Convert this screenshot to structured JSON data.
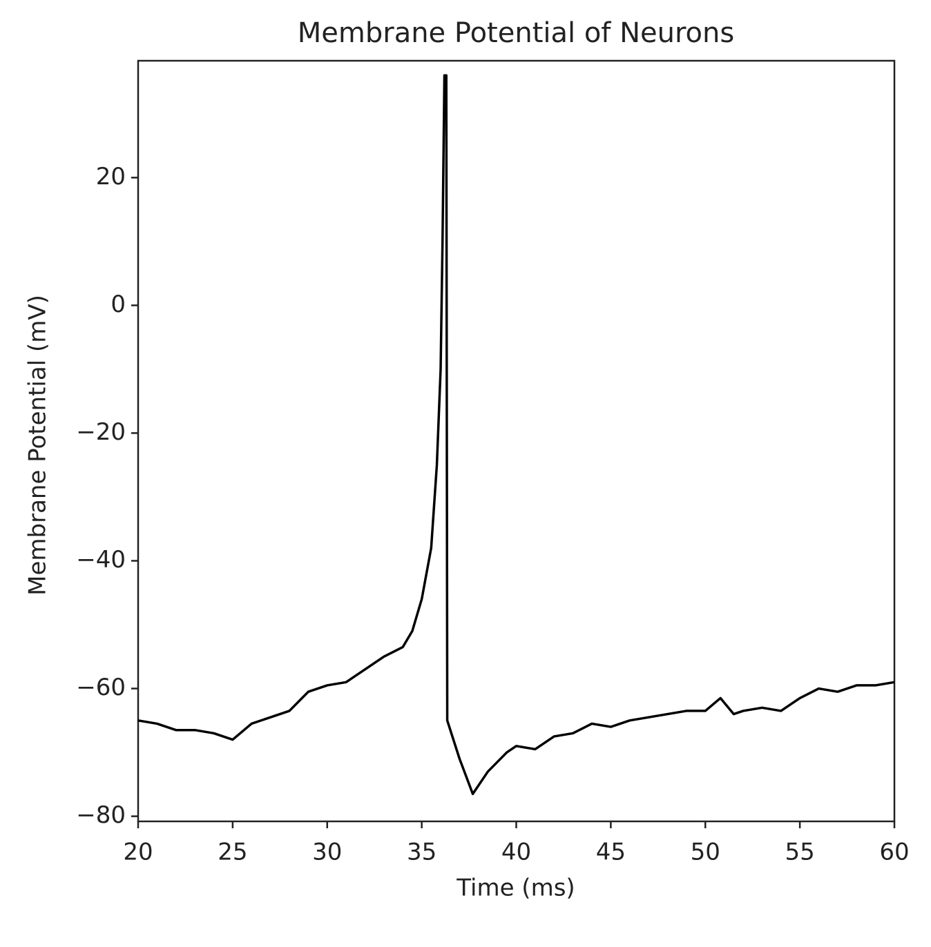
{
  "chart_data": {
    "type": "line",
    "title": "Membrane Potential of Neurons",
    "xlabel": "Time (ms)",
    "ylabel": "Membrane Potential (mV)",
    "x": [
      20,
      21,
      22,
      23,
      24,
      25,
      26,
      27,
      28,
      29,
      30,
      31,
      32,
      33,
      34,
      34.5,
      35,
      35.5,
      35.8,
      36.0,
      36.1,
      36.2,
      36.3,
      36.35,
      37,
      37.7,
      38.5,
      39.5,
      40,
      41,
      42,
      43,
      44,
      45,
      46,
      47,
      48,
      49,
      50,
      50.8,
      51.5,
      52,
      53,
      54,
      55,
      56,
      57,
      58,
      59,
      60
    ],
    "values": [
      -65,
      -65.5,
      -66.5,
      -66.5,
      -67,
      -68,
      -65.5,
      -64.5,
      -63.5,
      -60.5,
      -59.5,
      -59,
      -57,
      -55,
      -53.5,
      -51,
      -46,
      -38,
      -25,
      -10,
      10,
      36,
      36,
      -65,
      -71,
      -76.5,
      -73,
      -70,
      -69,
      -69.5,
      -67.5,
      -67,
      -65.5,
      -66,
      -65,
      -64.5,
      -64,
      -63.5,
      -63.5,
      -61.5,
      -64,
      -63.5,
      -63,
      -63.5,
      -61.5,
      -60,
      -60.5,
      -59.5,
      -59.5,
      -59
    ],
    "color": "#000000",
    "xlim": [
      20,
      60
    ],
    "ylim": [
      -80.8,
      38.3
    ],
    "xticks": [
      20,
      25,
      30,
      35,
      40,
      45,
      50,
      55,
      60
    ],
    "yticks": [
      {
        "value": -80,
        "label": "−80"
      },
      {
        "value": -60,
        "label": "−60"
      },
      {
        "value": -40,
        "label": "−40"
      },
      {
        "value": -20,
        "label": "−20"
      },
      0,
      20
    ],
    "grid": false
  }
}
